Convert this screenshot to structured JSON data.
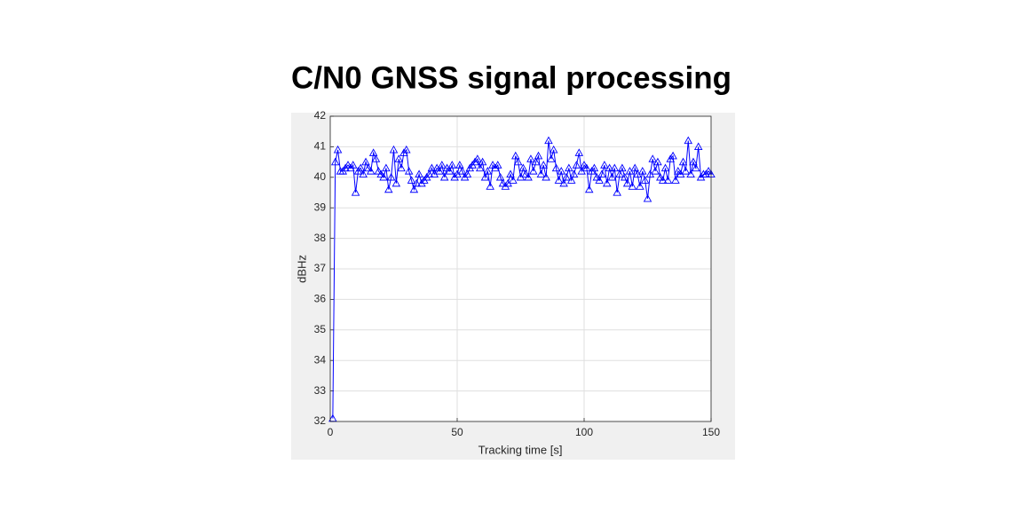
{
  "chart_data": {
    "type": "line",
    "title": "C/N0 GNSS signal processing",
    "xlabel": "Tracking time [s]",
    "ylabel": "dBHz",
    "x": [
      1,
      2,
      3,
      4,
      5,
      6,
      7,
      8,
      9,
      10,
      11,
      12,
      13,
      14,
      15,
      16,
      17,
      18,
      19,
      20,
      21,
      22,
      23,
      24,
      25,
      26,
      27,
      28,
      29,
      30,
      31,
      32,
      33,
      34,
      35,
      36,
      37,
      38,
      39,
      40,
      41,
      42,
      43,
      44,
      45,
      46,
      47,
      48,
      49,
      50,
      51,
      52,
      53,
      54,
      55,
      56,
      57,
      58,
      59,
      60,
      61,
      62,
      63,
      64,
      65,
      66,
      67,
      68,
      69,
      70,
      71,
      72,
      73,
      74,
      75,
      76,
      77,
      78,
      79,
      80,
      81,
      82,
      83,
      84,
      85,
      86,
      87,
      88,
      89,
      90,
      91,
      92,
      93,
      94,
      95,
      96,
      97,
      98,
      99,
      100,
      101,
      102,
      103,
      104,
      105,
      106,
      107,
      108,
      109,
      110,
      111,
      112,
      113,
      114,
      115,
      116,
      117,
      118,
      119,
      120,
      121,
      122,
      123,
      124,
      125,
      126,
      127,
      128,
      129,
      130,
      131,
      132,
      133,
      134,
      135,
      136,
      137,
      138,
      139,
      140,
      141,
      142,
      143,
      144,
      145,
      146,
      147,
      148,
      149,
      150
    ],
    "values": [
      32.1,
      40.5,
      40.9,
      40.2,
      40.2,
      40.3,
      40.4,
      40.3,
      40.4,
      39.5,
      40.2,
      40.3,
      40.1,
      40.5,
      40.3,
      40.2,
      40.8,
      40.6,
      40.2,
      40.1,
      40.0,
      40.3,
      39.6,
      40.0,
      40.9,
      39.8,
      40.6,
      40.3,
      40.8,
      40.9,
      40.2,
      39.9,
      39.6,
      39.8,
      40.1,
      39.8,
      39.9,
      40.0,
      40.1,
      40.3,
      40.1,
      40.3,
      40.2,
      40.4,
      40.0,
      40.3,
      40.2,
      40.4,
      40.0,
      40.1,
      40.4,
      40.2,
      40.0,
      40.1,
      40.3,
      40.4,
      40.5,
      40.6,
      40.3,
      40.5,
      40.0,
      40.2,
      39.7,
      40.4,
      40.3,
      40.4,
      40.0,
      39.8,
      39.7,
      39.8,
      40.1,
      39.9,
      40.7,
      40.5,
      40.0,
      40.3,
      40.1,
      40.0,
      40.6,
      40.2,
      40.5,
      40.7,
      40.1,
      40.4,
      40.0,
      41.2,
      40.6,
      40.9,
      40.3,
      39.9,
      40.2,
      39.8,
      40.0,
      40.3,
      39.9,
      40.1,
      40.4,
      40.8,
      40.2,
      40.4,
      40.3,
      39.6,
      40.2,
      40.3,
      40.0,
      39.9,
      40.1,
      40.4,
      39.8,
      40.3,
      40.0,
      40.3,
      39.5,
      40.1,
      40.3,
      40.0,
      39.8,
      40.2,
      39.7,
      40.3,
      40.1,
      39.7,
      40.2,
      39.9,
      39.3,
      40.1,
      40.6,
      40.2,
      40.5,
      40.0,
      39.9,
      40.3,
      39.9,
      40.6,
      40.7,
      39.9,
      40.2,
      40.1,
      40.5,
      40.2,
      41.2,
      40.1,
      40.5,
      40.3,
      41.0,
      40.0,
      40.1,
      40.1,
      40.2,
      40.1
    ],
    "color": "#0000ff",
    "marker": "triangle",
    "xlim": [
      0,
      150
    ],
    "xticks": [
      0,
      50,
      100,
      150
    ],
    "ylim": [
      32,
      42
    ],
    "yticks": [
      32,
      33,
      34,
      35,
      36,
      37,
      38,
      39,
      40,
      41,
      42
    ],
    "grid": true
  }
}
